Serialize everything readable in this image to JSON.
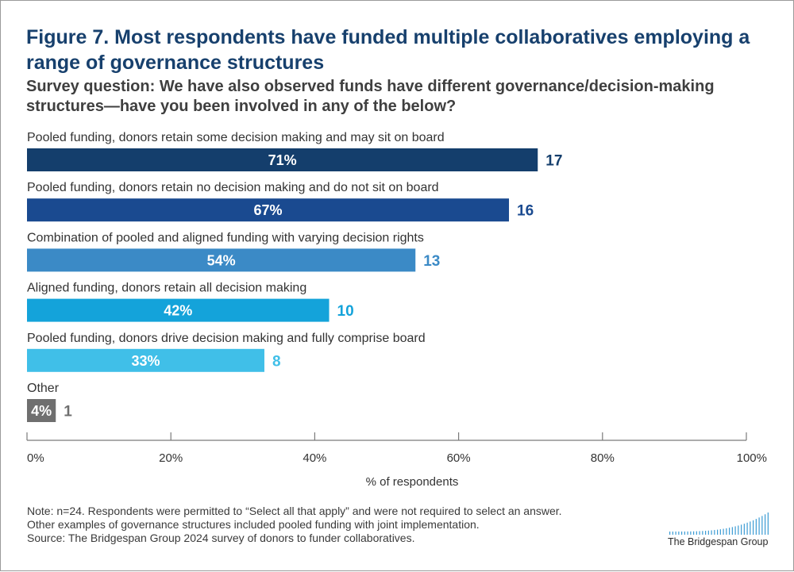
{
  "title": "Figure 7. Most respondents have funded multiple collaboratives employing a range of governance structures",
  "subtitle": "Survey question: We have also observed funds have different governance/decision-making structures—have you been involved in any of the below?",
  "chart_data": {
    "type": "bar",
    "orientation": "horizontal",
    "categories": [
      "Pooled funding, donors retain some decision making and may sit on board",
      "Pooled funding, donors retain no decision making and do not sit on board",
      "Combination of pooled and aligned funding with varying decision rights",
      "Aligned funding, donors retain all decision making",
      "Pooled funding, donors drive decision making and fully comprise board",
      "Other"
    ],
    "values": [
      71,
      67,
      54,
      42,
      33,
      4
    ],
    "bar_labels": [
      "71%",
      "67%",
      "54%",
      "42%",
      "33%",
      "4%"
    ],
    "counts": [
      "17",
      "16",
      "13",
      "10",
      "8",
      "1"
    ],
    "colors": [
      "#143e6c",
      "#1a4a90",
      "#3b8ac6",
      "#14a3da",
      "#40bfe8",
      "#6f6f6f"
    ],
    "xlabel": "% of respondents",
    "xlim": [
      0,
      100
    ],
    "xticks": [
      0,
      20,
      40,
      60,
      80,
      100
    ],
    "xtick_labels": [
      "0%",
      "20%",
      "40%",
      "60%",
      "80%",
      "100%"
    ],
    "grid": false,
    "legend": "none"
  },
  "notes": [
    "Note: n=24. Respondents were permitted to “Select all that apply” and were not required to select an answer.",
    "Other examples of governance structures included pooled funding with joint implementation.",
    "Source: The Bridgespan Group 2024 survey of donors to funder collaboratives."
  ],
  "logo": {
    "text": "The Bridgespan Group",
    "color": "#3b9bd4"
  }
}
